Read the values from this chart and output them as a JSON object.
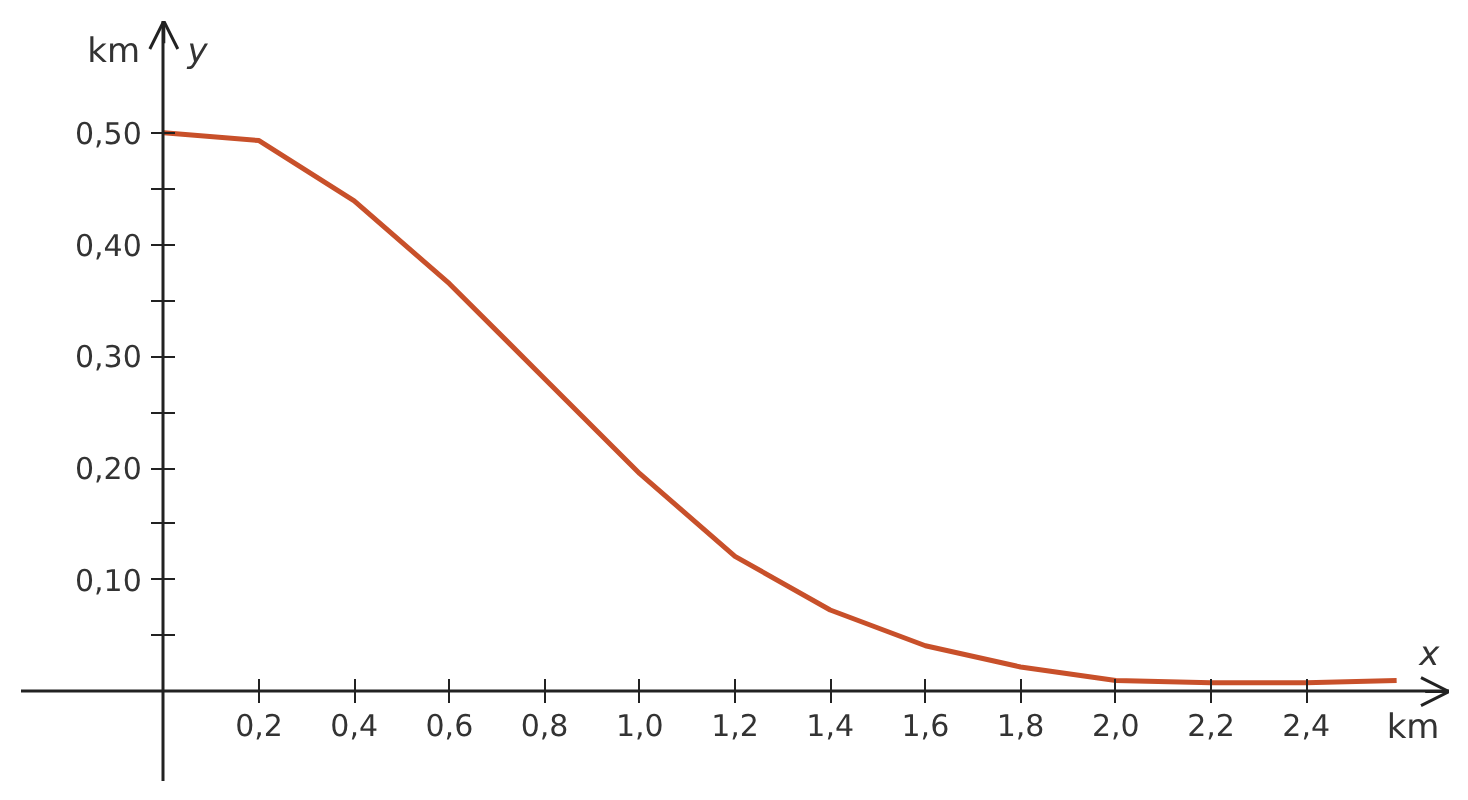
{
  "chart_data": {
    "type": "line",
    "xlabel": "x",
    "ylabel": "y",
    "annotations": [
      "km",
      "km"
    ],
    "x": [
      0,
      0.2,
      0.4,
      0.6,
      0.8,
      1.0,
      1.2,
      1.4,
      1.6,
      1.8,
      2.0,
      2.2,
      2.4,
      2.59
    ],
    "series": [
      {
        "color": "#c8502a",
        "values": [
          0.5,
          0.493,
          0.439,
          0.365,
          0.28,
          0.195,
          0.121,
          0.073,
          0.041,
          0.022,
          0.01,
          0.008,
          0.008,
          0.01
        ]
      }
    ],
    "xlim": [
      -0.3,
      2.7
    ],
    "ylim": [
      -0.08,
      0.6
    ],
    "xticks": [
      {
        "value": 0.2,
        "label": "0,2"
      },
      {
        "value": 0.4,
        "label": "0,4"
      },
      {
        "value": 0.6,
        "label": "0,6"
      },
      {
        "value": 0.8,
        "label": "0,8"
      },
      {
        "value": 1.0,
        "label": "1,0"
      },
      {
        "value": 1.2,
        "label": "1,2"
      },
      {
        "value": 1.4,
        "label": "1,4"
      },
      {
        "value": 1.6,
        "label": "1,6"
      },
      {
        "value": 1.8,
        "label": "1,8"
      },
      {
        "value": 2.0,
        "label": "2,0"
      },
      {
        "value": 2.2,
        "label": "2,2"
      },
      {
        "value": 2.4,
        "label": "2,4"
      }
    ],
    "yticks": [
      {
        "value": 0.05,
        "label": null
      },
      {
        "value": 0.1,
        "label": "0,10"
      },
      {
        "value": 0.15,
        "label": null
      },
      {
        "value": 0.2,
        "label": "0,20"
      },
      {
        "value": 0.25,
        "label": null
      },
      {
        "value": 0.3,
        "label": "0,30"
      },
      {
        "value": 0.35,
        "label": null
      },
      {
        "value": 0.4,
        "label": "0,40"
      },
      {
        "value": 0.45,
        "label": null
      },
      {
        "value": 0.5,
        "label": "0,50"
      }
    ],
    "grid": false,
    "marker": "none",
    "line_style": "solid"
  }
}
